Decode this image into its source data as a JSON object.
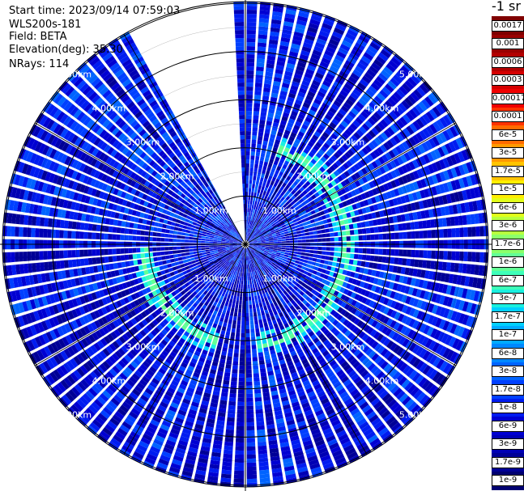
{
  "info": {
    "start_time": "Start time: 2023/09/14 07:59:03",
    "instrument": "WLS200s-181",
    "field": "Field: BETA",
    "elevation": "Elevation(deg): 35.30",
    "nrays": "NRays: 114"
  },
  "colorbar": {
    "title": "-1 sr",
    "labels": [
      "0.0017",
      "0.001",
      "0.0006",
      "0.0003",
      "0.00017",
      "0.0001",
      "6e-5",
      "3e-5",
      "1.7e-5",
      "1e-5",
      "6e-6",
      "3e-6",
      "1.7e-6",
      "1e-6",
      "6e-7",
      "3e-7",
      "1.7e-7",
      "1e-7",
      "6e-8",
      "3e-8",
      "1.7e-8",
      "1e-8",
      "6e-9",
      "3e-9",
      "1.7e-9",
      "1e-9"
    ],
    "colors": [
      "#7f0000",
      "#990000",
      "#b20000",
      "#d40000",
      "#f00000",
      "#ff3300",
      "#ff6a00",
      "#ff9900",
      "#ffc400",
      "#ffee00",
      "#e1ff1a",
      "#b8ff3f",
      "#8cff6b",
      "#62ff95",
      "#3effb9",
      "#1af0e0",
      "#00d0ff",
      "#00aaff",
      "#0088ff",
      "#0064ff",
      "#0040ff",
      "#001cf0",
      "#0000d2",
      "#0000b4",
      "#000096",
      "#000070"
    ]
  },
  "chart_data": {
    "type": "heatmap",
    "subtype": "polar PPI scan",
    "range_rings_km": [
      1,
      2,
      3,
      4,
      5
    ],
    "range_ring_labels": [
      "1.00km",
      "2.00km",
      "3.00km",
      "4.00km",
      "5.00km"
    ],
    "max_range_km": 5,
    "azimuth_spokes_deg": [
      0,
      30,
      60,
      90,
      120,
      150,
      180,
      210,
      240,
      270,
      300,
      330
    ],
    "missing_sector_deg": [
      333,
      358
    ],
    "background_level": "1e-8",
    "enhanced_ring_km": 2.1,
    "enhanced_ring_level": "1e-6",
    "nrays": 114
  }
}
